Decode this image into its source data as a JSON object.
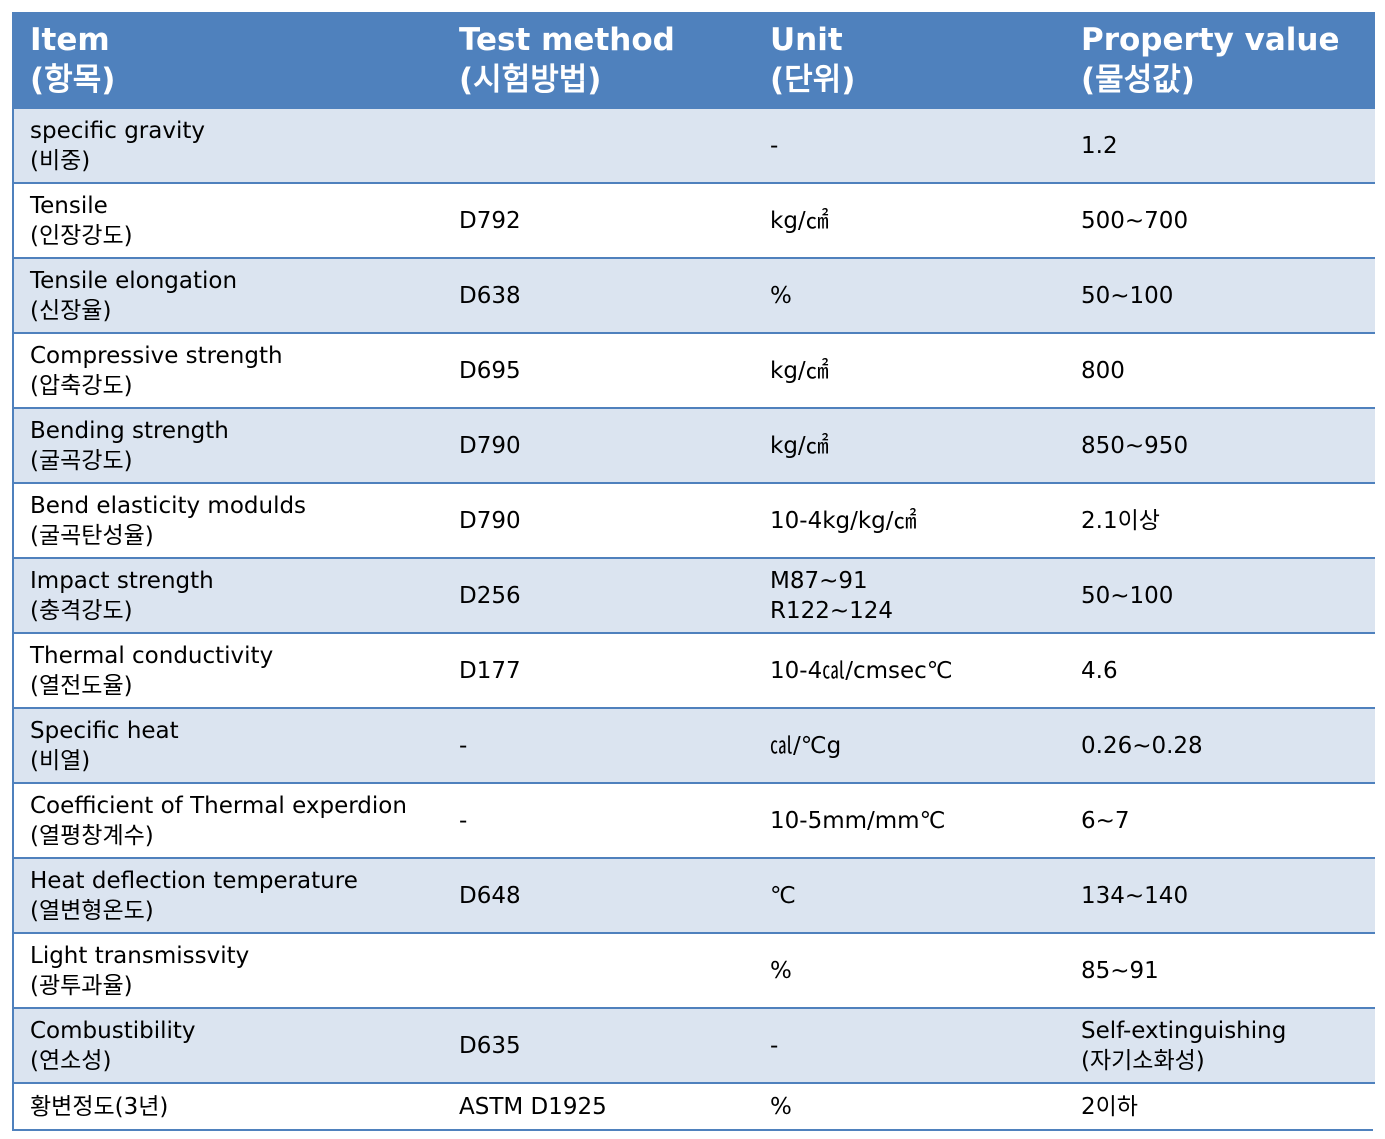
{
  "header": {
    "item_en": "Item",
    "item_ko": "(항목)",
    "method_en": "Test method",
    "method_ko": "(시험방법)",
    "unit_en": "Unit",
    "unit_ko": "(단위)",
    "value_en": "Property value",
    "value_ko": "(물성값)"
  },
  "rows": [
    {
      "item_en": "specific gravity",
      "item_ko": "(비중)",
      "method": "",
      "unit": "-",
      "unit2": "",
      "value": "1.2",
      "value2": ""
    },
    {
      "item_en": "Tensile",
      "item_ko": "(인장강도)",
      "method": "D792",
      "unit": "kg/㎠",
      "unit2": "",
      "value": "500~700",
      "value2": ""
    },
    {
      "item_en": "Tensile elongation",
      "item_ko": "(신장율)",
      "method": "D638",
      "unit": "%",
      "unit2": "",
      "value": "50~100",
      "value2": ""
    },
    {
      "item_en": "Compressive strength",
      "item_ko": "(압축강도)",
      "method": "D695",
      "unit": "kg/㎠",
      "unit2": "",
      "value": "800",
      "value2": ""
    },
    {
      "item_en": "Bending strength",
      "item_ko": "(굴곡강도)",
      "method": "D790",
      "unit": "kg/㎠",
      "unit2": "",
      "value": "850~950",
      "value2": ""
    },
    {
      "item_en": "Bend elasticity modulds",
      "item_ko": "(굴곡탄성율)",
      "method": "D790",
      "unit": "10-4kg/kg/㎠",
      "unit2": "",
      "value": "2.1이상",
      "value2": ""
    },
    {
      "item_en": "Impact strength",
      "item_ko": "(충격강도)",
      "method": "D256",
      "unit": "M87~91",
      "unit2": "R122~124",
      "value": "50~100",
      "value2": ""
    },
    {
      "item_en": "Thermal conductivity",
      "item_ko": "(열전도율)",
      "method": "D177",
      "unit": "10-4㎈/cmsec℃",
      "unit2": "",
      "value": "4.6",
      "value2": ""
    },
    {
      "item_en": "Specific heat",
      "item_ko": "(비열)",
      "method": "-",
      "unit": "㎈/℃g",
      "unit2": "",
      "value": "0.26~0.28",
      "value2": ""
    },
    {
      "item_en": "Coefficient of Thermal experdion",
      "item_ko": "(열평창계수)",
      "method": "-",
      "unit": "10-5mm/mm℃",
      "unit2": "",
      "value": "6~7",
      "value2": ""
    },
    {
      "item_en": "Heat deflection temperature",
      "item_ko": "(열변형온도)",
      "method": "D648",
      "unit": "℃",
      "unit2": "",
      "value": "134~140",
      "value2": ""
    },
    {
      "item_en": "Light transmissvity",
      "item_ko": "(광투과율)",
      "method": "",
      "unit": "%",
      "unit2": "",
      "value": "85~91",
      "value2": ""
    },
    {
      "item_en": "Combustibility",
      "item_ko": "(연소성)",
      "method": "D635",
      "unit": "-",
      "unit2": "",
      "value": "Self-extinguishing",
      "value2": "(자기소화성)"
    },
    {
      "item_en": "황변정도(3년)",
      "item_ko": "",
      "method": "ASTM D1925",
      "unit": "%",
      "unit2": "",
      "value": "2이하",
      "value2": ""
    }
  ]
}
